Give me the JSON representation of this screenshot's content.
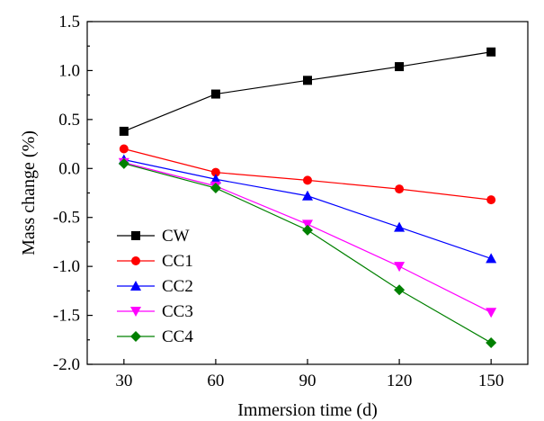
{
  "chart_data": {
    "type": "line",
    "xlabel": "Immersion time (d)",
    "ylabel": "Mass change (%)",
    "x": [
      30,
      60,
      90,
      120,
      150
    ],
    "xticks": [
      30,
      60,
      90,
      120,
      150
    ],
    "xlim": [
      18,
      162
    ],
    "ylim": [
      -2.0,
      1.5
    ],
    "yticks": [
      -2.0,
      -1.5,
      -1.0,
      -0.5,
      0.0,
      0.5,
      1.0,
      1.5
    ],
    "ytick_labels": [
      "-2.0",
      "-1.5",
      "-1.0",
      "-0.5",
      "0.0",
      "0.5",
      "1.0",
      "1.5"
    ],
    "grid": false,
    "legend_position": "bottom-left",
    "series": [
      {
        "name": "CW",
        "values": [
          0.38,
          0.76,
          0.9,
          1.04,
          1.19
        ],
        "color": "#000000",
        "marker": "square"
      },
      {
        "name": "CC1",
        "values": [
          0.2,
          -0.04,
          -0.12,
          -0.21,
          -0.32
        ],
        "color": "#ff0000",
        "marker": "circle"
      },
      {
        "name": "CC2",
        "values": [
          0.09,
          -0.11,
          -0.28,
          -0.6,
          -0.92
        ],
        "color": "#0000ff",
        "marker": "triangle-up"
      },
      {
        "name": "CC3",
        "values": [
          0.06,
          -0.18,
          -0.57,
          -1.0,
          -1.47
        ],
        "color": "#ff00ff",
        "marker": "triangle-down"
      },
      {
        "name": "CC4",
        "values": [
          0.05,
          -0.2,
          -0.63,
          -1.24,
          -1.78
        ],
        "color": "#008000",
        "marker": "diamond"
      }
    ]
  }
}
